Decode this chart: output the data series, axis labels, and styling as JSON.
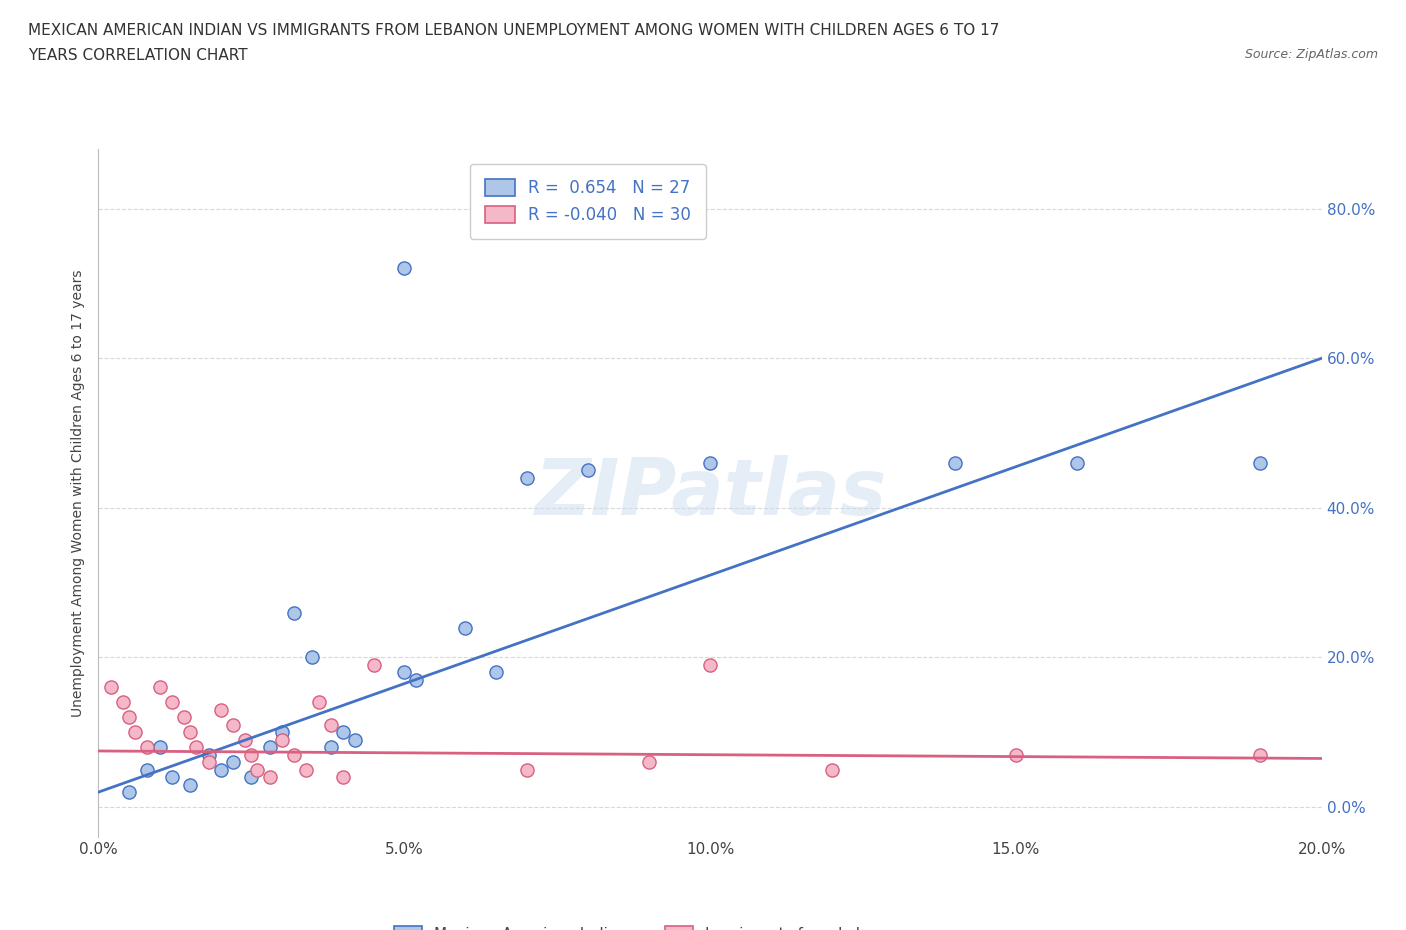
{
  "title_line1": "MEXICAN AMERICAN INDIAN VS IMMIGRANTS FROM LEBANON UNEMPLOYMENT AMONG WOMEN WITH CHILDREN AGES 6 TO 17",
  "title_line2": "YEARS CORRELATION CHART",
  "source": "Source: ZipAtlas.com",
  "ylabel": "Unemployment Among Women with Children Ages 6 to 17 years",
  "xlim": [
    0.0,
    0.2
  ],
  "ylim": [
    -0.04,
    0.88
  ],
  "xticks": [
    0.0,
    0.05,
    0.1,
    0.15,
    0.2
  ],
  "ytick_positions": [
    0.0,
    0.2,
    0.4,
    0.6,
    0.8
  ],
  "ytick_labels": [
    "0.0%",
    "20.0%",
    "40.0%",
    "60.0%",
    "80.0%"
  ],
  "xtick_labels": [
    "0.0%",
    "5.0%",
    "10.0%",
    "15.0%",
    "20.0%"
  ],
  "color_blue": "#aec6e8",
  "color_pink": "#f4b8c8",
  "line_blue": "#4472c4",
  "line_pink": "#d96080",
  "r_blue": 0.654,
  "n_blue": 27,
  "r_pink": -0.04,
  "n_pink": 30,
  "blue_scatter": [
    [
      0.005,
      0.02
    ],
    [
      0.008,
      0.05
    ],
    [
      0.01,
      0.08
    ],
    [
      0.012,
      0.04
    ],
    [
      0.015,
      0.03
    ],
    [
      0.018,
      0.07
    ],
    [
      0.02,
      0.05
    ],
    [
      0.022,
      0.06
    ],
    [
      0.025,
      0.04
    ],
    [
      0.028,
      0.08
    ],
    [
      0.03,
      0.1
    ],
    [
      0.032,
      0.26
    ],
    [
      0.035,
      0.2
    ],
    [
      0.038,
      0.08
    ],
    [
      0.04,
      0.1
    ],
    [
      0.042,
      0.09
    ],
    [
      0.05,
      0.18
    ],
    [
      0.052,
      0.17
    ],
    [
      0.06,
      0.24
    ],
    [
      0.065,
      0.18
    ],
    [
      0.07,
      0.44
    ],
    [
      0.08,
      0.45
    ],
    [
      0.1,
      0.46
    ],
    [
      0.14,
      0.46
    ],
    [
      0.16,
      0.46
    ],
    [
      0.19,
      0.46
    ],
    [
      0.05,
      0.72
    ]
  ],
  "pink_scatter": [
    [
      0.002,
      0.16
    ],
    [
      0.004,
      0.14
    ],
    [
      0.005,
      0.12
    ],
    [
      0.006,
      0.1
    ],
    [
      0.008,
      0.08
    ],
    [
      0.01,
      0.16
    ],
    [
      0.012,
      0.14
    ],
    [
      0.014,
      0.12
    ],
    [
      0.015,
      0.1
    ],
    [
      0.016,
      0.08
    ],
    [
      0.018,
      0.06
    ],
    [
      0.02,
      0.13
    ],
    [
      0.022,
      0.11
    ],
    [
      0.024,
      0.09
    ],
    [
      0.025,
      0.07
    ],
    [
      0.026,
      0.05
    ],
    [
      0.028,
      0.04
    ],
    [
      0.03,
      0.09
    ],
    [
      0.032,
      0.07
    ],
    [
      0.034,
      0.05
    ],
    [
      0.036,
      0.14
    ],
    [
      0.038,
      0.11
    ],
    [
      0.04,
      0.04
    ],
    [
      0.045,
      0.19
    ],
    [
      0.07,
      0.05
    ],
    [
      0.09,
      0.06
    ],
    [
      0.1,
      0.19
    ],
    [
      0.12,
      0.05
    ],
    [
      0.15,
      0.07
    ],
    [
      0.19,
      0.07
    ]
  ],
  "blue_reg": [
    0.0,
    0.2,
    0.02,
    0.6
  ],
  "pink_reg": [
    0.0,
    0.2,
    0.075,
    0.065
  ],
  "watermark": "ZIPatlas",
  "grid_color": "#d8d8d8",
  "background_color": "#ffffff",
  "legend_label_blue": "R =  0.654   N = 27",
  "legend_label_pink": "R = -0.040   N = 30",
  "bottom_label_blue": "Mexican American Indians",
  "bottom_label_pink": "Immigrants from Lebanon"
}
